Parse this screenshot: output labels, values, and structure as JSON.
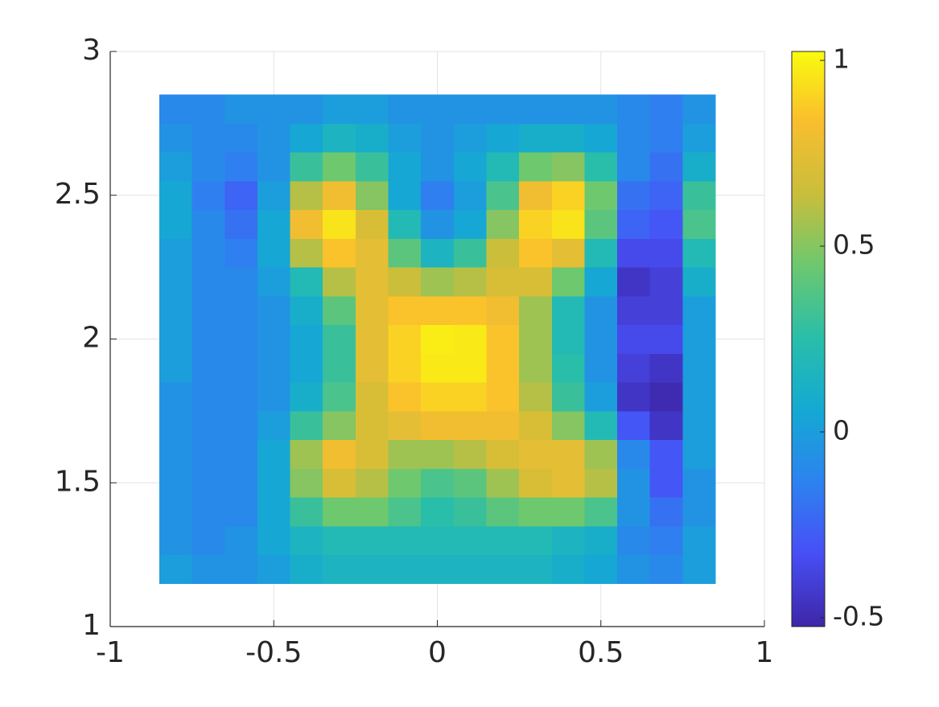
{
  "chart_data": {
    "type": "heatmap",
    "colormap": "parula",
    "grid": true,
    "x": [
      -0.8,
      -0.7,
      -0.6,
      -0.5,
      -0.4,
      -0.3,
      -0.2,
      -0.1,
      0,
      0.1,
      0.2,
      0.3,
      0.4,
      0.5,
      0.6,
      0.7,
      0.8
    ],
    "y": [
      1.2,
      1.3,
      1.4,
      1.5,
      1.6,
      1.7,
      1.8,
      1.9,
      2.0,
      2.1,
      2.2,
      2.3,
      2.4,
      2.5,
      2.6,
      2.7,
      2.8
    ],
    "z": [
      [
        0,
        -0.05,
        -0.05,
        0,
        0.1,
        0.15,
        0.15,
        0.15,
        0.15,
        0.15,
        0.15,
        0.15,
        0.1,
        0.05,
        -0.05,
        -0.1,
        0
      ],
      [
        -0.05,
        -0.1,
        -0.05,
        0.05,
        0.15,
        0.2,
        0.2,
        0.2,
        0.2,
        0.2,
        0.2,
        0.2,
        0.15,
        0.1,
        -0.1,
        -0.15,
        0
      ],
      [
        -0.05,
        -0.1,
        -0.1,
        0.05,
        0.3,
        0.45,
        0.45,
        0.35,
        0.25,
        0.3,
        0.4,
        0.45,
        0.45,
        0.35,
        -0.05,
        -0.2,
        -0.05
      ],
      [
        -0.05,
        -0.1,
        -0.1,
        0.05,
        0.5,
        0.7,
        0.6,
        0.45,
        0.35,
        0.4,
        0.55,
        0.7,
        0.75,
        0.6,
        -0.05,
        -0.3,
        -0.05
      ],
      [
        -0.05,
        -0.1,
        -0.1,
        0.05,
        0.55,
        0.8,
        0.7,
        0.55,
        0.55,
        0.6,
        0.7,
        0.75,
        0.75,
        0.55,
        -0.1,
        -0.3,
        0
      ],
      [
        -0.05,
        -0.1,
        -0.1,
        0,
        0.3,
        0.5,
        0.7,
        0.75,
        0.8,
        0.8,
        0.8,
        0.7,
        0.5,
        0.2,
        -0.3,
        -0.45,
        0
      ],
      [
        -0.05,
        -0.1,
        -0.1,
        -0.05,
        0.1,
        0.35,
        0.7,
        0.85,
        0.9,
        0.9,
        0.85,
        0.6,
        0.3,
        0,
        -0.45,
        -0.5,
        0
      ],
      [
        0,
        -0.1,
        -0.1,
        -0.05,
        0.05,
        0.3,
        0.75,
        0.9,
        0.97,
        0.97,
        0.85,
        0.55,
        0.25,
        -0.05,
        -0.4,
        -0.45,
        0
      ],
      [
        0,
        -0.1,
        -0.1,
        -0.05,
        0.05,
        0.3,
        0.75,
        0.9,
        0.98,
        0.97,
        0.85,
        0.55,
        0.2,
        -0.05,
        -0.35,
        -0.35,
        0
      ],
      [
        0,
        -0.1,
        -0.1,
        -0.05,
        0.1,
        0.4,
        0.75,
        0.85,
        0.85,
        0.85,
        0.8,
        0.55,
        0.2,
        -0.05,
        -0.4,
        -0.4,
        0
      ],
      [
        0,
        -0.1,
        -0.1,
        0,
        0.2,
        0.6,
        0.75,
        0.65,
        0.55,
        0.6,
        0.7,
        0.7,
        0.45,
        0.05,
        -0.45,
        -0.4,
        0.1
      ],
      [
        0,
        -0.1,
        -0.15,
        0.05,
        0.6,
        0.85,
        0.75,
        0.4,
        0.15,
        0.3,
        0.65,
        0.85,
        0.75,
        0.2,
        -0.35,
        -0.35,
        0.2
      ],
      [
        0.05,
        -0.1,
        -0.2,
        0.05,
        0.8,
        0.95,
        0.7,
        0.2,
        -0.05,
        0.05,
        0.5,
        0.9,
        0.95,
        0.4,
        -0.25,
        -0.3,
        0.35
      ],
      [
        0.05,
        -0.15,
        -0.25,
        0,
        0.6,
        0.8,
        0.5,
        0.05,
        -0.15,
        0,
        0.35,
        0.8,
        0.9,
        0.45,
        -0.2,
        -0.25,
        0.3
      ],
      [
        0,
        -0.1,
        -0.15,
        -0.05,
        0.3,
        0.45,
        0.3,
        0.05,
        -0.05,
        0.05,
        0.2,
        0.45,
        0.5,
        0.25,
        -0.1,
        -0.2,
        0.1
      ],
      [
        -0.05,
        -0.1,
        -0.1,
        -0.05,
        0.05,
        0.15,
        0.1,
        0,
        -0.05,
        0,
        0.05,
        0.1,
        0.1,
        0.05,
        -0.1,
        -0.15,
        0
      ],
      [
        -0.1,
        -0.1,
        -0.05,
        -0.05,
        -0.05,
        0,
        0,
        -0.05,
        -0.05,
        -0.05,
        -0.05,
        -0.05,
        -0.05,
        -0.05,
        -0.1,
        -0.15,
        -0.05
      ]
    ],
    "xlim": [
      -1,
      1
    ],
    "xticks": [
      -1,
      -0.5,
      0,
      0.5,
      1
    ],
    "ylim": [
      1,
      3
    ],
    "yticks": [
      1,
      1.5,
      2,
      2.5,
      3
    ],
    "clim": [
      -0.524,
      1.024
    ],
    "cticks": [
      -0.5,
      0,
      0.5,
      1
    ]
  }
}
